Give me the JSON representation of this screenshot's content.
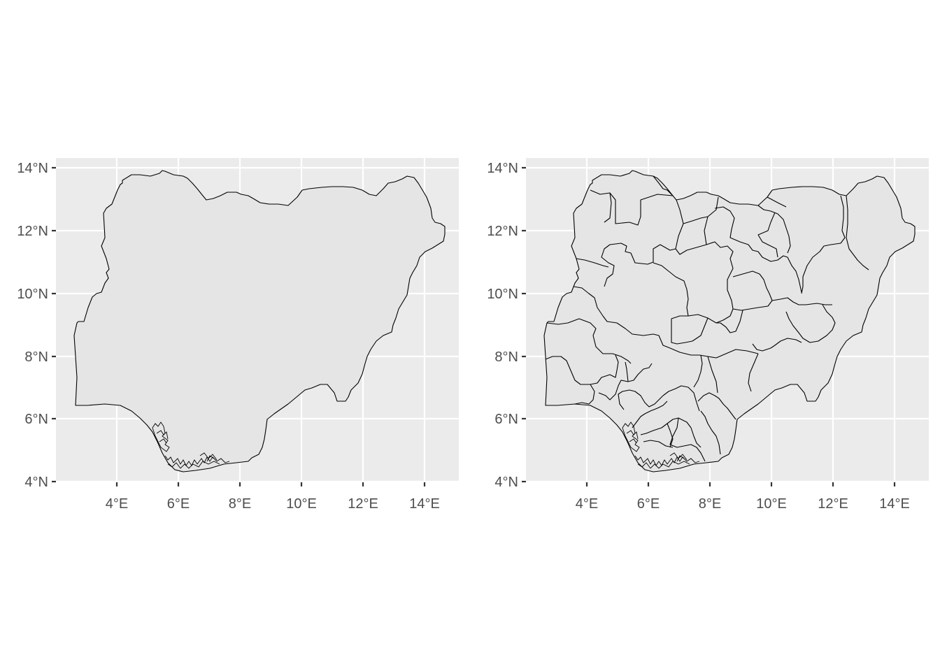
{
  "colors": {
    "panel_background": "#ebebeb",
    "gridline": "#ffffff",
    "fill": "#e5e5e5",
    "outline": "#000000",
    "axis_text": "#4d4d4d"
  },
  "maps": [
    {
      "id": "country",
      "region": "Nigeria",
      "boundaries": "country outline",
      "x_ticks": [
        "4°E",
        "6°E",
        "8°E",
        "10°E",
        "12°E",
        "14°E"
      ],
      "y_ticks": [
        "4°N",
        "6°N",
        "8°N",
        "10°N",
        "12°N",
        "14°N"
      ]
    },
    {
      "id": "states",
      "region": "Nigeria",
      "boundaries": "state boundaries",
      "x_ticks": [
        "4°E",
        "6°E",
        "8°E",
        "10°E",
        "12°E",
        "14°E"
      ],
      "y_ticks": [
        "4°N",
        "6°N",
        "8°N",
        "10°N",
        "12°N",
        "14°N"
      ]
    }
  ]
}
